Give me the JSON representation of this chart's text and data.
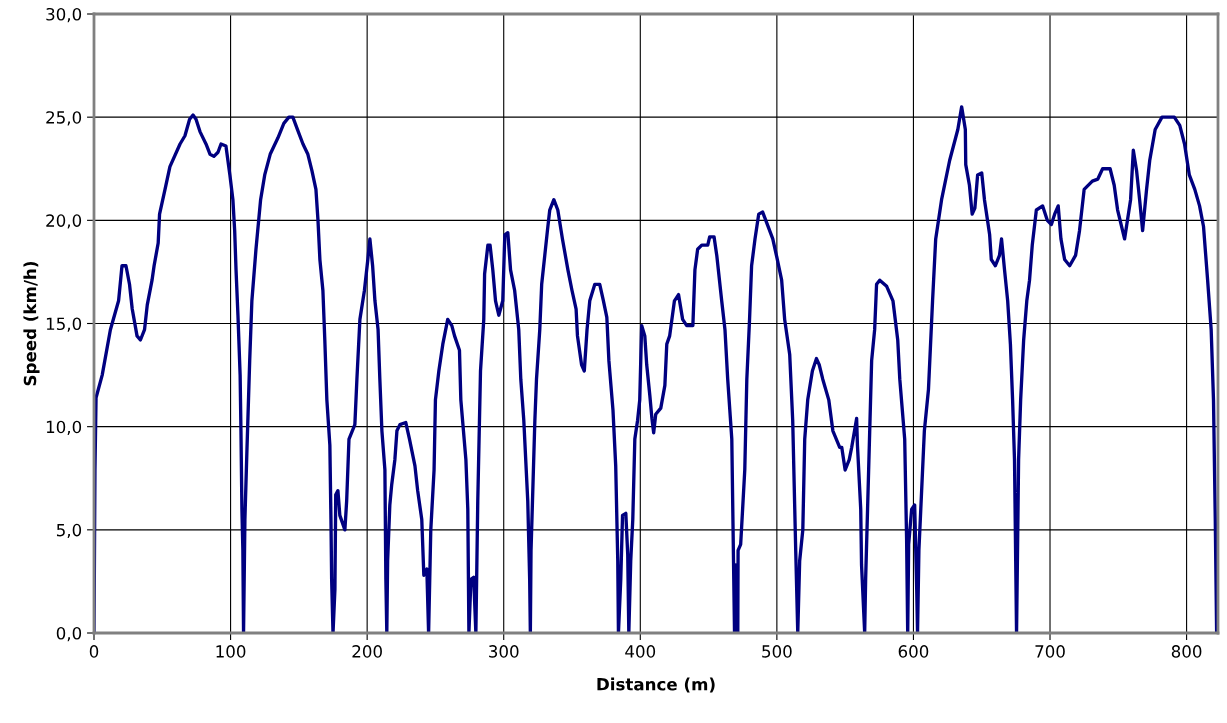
{
  "chart_data": {
    "type": "line",
    "xlabel": "Distance (m)",
    "ylabel": "Speed (km/h)",
    "xlim": [
      0,
      823
    ],
    "xticks": [
      0,
      100,
      200,
      300,
      400,
      500,
      600,
      700,
      800
    ],
    "ylim": [
      0,
      30
    ],
    "yticks": [
      {
        "value": 0,
        "label": "0,0"
      },
      {
        "value": 5,
        "label": "5,0"
      },
      {
        "value": 10,
        "label": "10,0"
      },
      {
        "value": 15,
        "label": "15,0"
      },
      {
        "value": 20,
        "label": "20,0"
      },
      {
        "value": 25,
        "label": "25,0"
      },
      {
        "value": 30,
        "label": "30,0"
      }
    ],
    "grid": true,
    "marker": "none",
    "line_style": "solid",
    "series": [
      {
        "color": "#000080",
        "x": [
          0,
          0.7,
          1.5,
          6,
          12,
          18,
          20.5,
          23.4,
          26,
          28,
          31.5,
          34,
          37,
          39,
          42.5,
          44,
          47,
          48,
          52,
          55.6,
          63,
          66.6,
          70,
          72.5,
          74.7,
          77.6,
          82,
          85,
          87.8,
          90.8,
          93,
          96.6,
          99.5,
          101.7,
          103,
          104,
          105.4,
          107,
          107.6,
          108.3,
          109,
          109.5,
          110.5,
          112,
          114,
          115.6,
          118.6,
          122,
          125,
          129,
          134.7,
          139,
          142.7,
          145.6,
          149,
          153,
          156.6,
          159.6,
          162.5,
          164,
          165.4,
          167.6,
          169,
          170.5,
          172.7,
          173.5,
          174,
          175,
          176.4,
          177,
          178.6,
          180,
          183.7,
          185,
          186.7,
          191,
          192.5,
          194.7,
          198,
          200.5,
          202,
          204,
          205.7,
          208,
          209.3,
          210.8,
          213,
          213.7,
          214.4,
          215,
          216.6,
          218,
          220.3,
          221.8,
          224,
          228.3,
          231,
          235,
          237,
          240,
          241.5,
          243.7,
          245,
          246.6,
          249,
          250,
          252.5,
          255.4,
          259,
          262,
          264,
          267.6,
          268.6,
          272.3,
          273.7,
          274.5,
          276,
          278,
          279.6,
          281,
          283,
          285.4,
          286,
          288.4,
          290,
          292,
          294,
          296.4,
          299.3,
          300.8,
          303,
          305,
          308,
          311,
          312.5,
          314.7,
          317.6,
          319,
          319.5,
          320,
          322.8,
          324,
          326.4,
          327.8,
          332,
          333.7,
          336.7,
          339.6,
          343,
          347,
          350,
          353,
          354,
          357,
          359,
          361,
          363,
          366.7,
          370.3,
          373,
          375.5,
          377,
          380,
          382,
          383.5,
          384,
          385.7,
          387,
          389.4,
          390.8,
          391.6,
          393,
          394.5,
          396,
          398,
          399.6,
          401,
          403.3,
          404.7,
          407,
          408.5,
          409.8,
          411.3,
          415,
          418,
          419.4,
          421.5,
          425,
          428,
          431,
          434,
          438.5,
          440,
          442,
          445,
          449.4,
          450.8,
          454,
          456,
          459.6,
          462,
          464,
          467,
          469,
          470,
          471.4,
          471.6,
          473.5,
          476.5,
          478,
          480,
          481.5,
          484,
          486.7,
          489.6,
          493,
          497,
          500,
          503.5,
          505.7,
          509.4,
          511.6,
          513.8,
          515.3,
          516.7,
          519,
          520.4,
          522.6,
          526,
          529,
          531,
          533.6,
          538,
          541,
          546,
          547.5,
          550,
          553,
          554.8,
          558.4,
          559,
          561.4,
          562,
          564.3,
          565,
          567.2,
          569.4,
          571.6,
          573,
          575.3,
          580.4,
          585,
          588.5,
          590,
          593.6,
          595,
          595.8,
          596.5,
          598.7,
          600.9,
          602.4,
          603,
          604,
          606,
          608,
          611,
          614,
          616.3,
          620.6,
          626.5,
          632.5,
          635.3,
          638,
          638.3,
          641,
          643,
          645,
          647,
          650,
          652,
          655.8,
          657,
          660,
          663,
          664.5,
          666.7,
          669,
          671,
          672.6,
          674,
          675.5,
          677,
          678.5,
          680.7,
          683,
          685,
          687,
          690,
          694.6,
          698,
          701,
          703.4,
          706,
          708,
          710.7,
          714.4,
          718.7,
          721.6,
          725,
          731,
          735,
          738.5,
          744,
          747,
          749.5,
          754.6,
          759,
          761,
          763.4,
          765.6,
          767.8,
          770.7,
          773,
          777,
          782,
          791,
          795,
          798.5,
          802,
          806,
          809.5,
          812.4,
          815.4,
          818,
          819.7,
          821,
          822
        ],
        "values": [
          0,
          7.9,
          11.4,
          12.5,
          14.7,
          16.1,
          17.8,
          17.8,
          16.9,
          15.7,
          14.4,
          14.2,
          14.7,
          15.9,
          17.1,
          17.8,
          18.9,
          20.3,
          21.5,
          22.6,
          23.7,
          24.1,
          24.9,
          25.1,
          24.9,
          24.3,
          23.7,
          23.2,
          23.1,
          23.3,
          23.7,
          23.6,
          22.2,
          21.0,
          19.5,
          17.6,
          15.4,
          12.5,
          9.8,
          6.0,
          4.0,
          0,
          5.5,
          8.9,
          13.2,
          16.1,
          18.6,
          21.0,
          22.2,
          23.2,
          24.0,
          24.7,
          25.0,
          25.0,
          24.4,
          23.7,
          23.2,
          22.4,
          21.5,
          20.0,
          18.1,
          16.6,
          14.2,
          11.3,
          9.1,
          5.5,
          2.6,
          0,
          2.1,
          6.7,
          6.9,
          5.7,
          5.0,
          6.4,
          9.4,
          10.1,
          12.3,
          15.2,
          16.6,
          18.1,
          19.1,
          17.8,
          16.1,
          14.7,
          12.3,
          9.8,
          7.9,
          2.6,
          0,
          3.5,
          6.2,
          7.2,
          8.4,
          9.8,
          10.1,
          10.2,
          9.4,
          8.1,
          6.9,
          5.5,
          2.8,
          3.1,
          0,
          5.0,
          7.9,
          11.3,
          12.7,
          14.0,
          15.2,
          14.9,
          14.4,
          13.7,
          11.3,
          8.4,
          6.0,
          0,
          2.6,
          2.7,
          0,
          6.4,
          12.7,
          15.2,
          17.4,
          18.8,
          18.8,
          17.6,
          16.1,
          15.4,
          16.1,
          19.3,
          19.4,
          17.6,
          16.6,
          14.7,
          12.3,
          10.3,
          6.4,
          2.6,
          0,
          4.0,
          10.3,
          12.3,
          14.7,
          16.9,
          19.5,
          20.5,
          21.0,
          20.5,
          19.1,
          17.6,
          16.6,
          15.7,
          14.4,
          13.0,
          12.7,
          14.7,
          16.1,
          16.9,
          16.9,
          16.1,
          15.3,
          13.2,
          10.8,
          8.1,
          3.5,
          0,
          2.6,
          5.7,
          5.8,
          3.8,
          0,
          3.5,
          5.5,
          9.4,
          10.3,
          11.3,
          14.9,
          14.4,
          13.0,
          11.5,
          10.4,
          9.7,
          10.6,
          10.9,
          12.0,
          14.0,
          14.4,
          16.1,
          16.4,
          15.2,
          14.9,
          14.9,
          17.6,
          18.6,
          18.8,
          18.8,
          19.2,
          19.2,
          18.3,
          16.1,
          14.7,
          12.3,
          9.4,
          0,
          3.3,
          0,
          4.0,
          4.3,
          7.9,
          12.3,
          15.2,
          17.8,
          19.1,
          20.3,
          20.4,
          19.8,
          19.1,
          18.2,
          17.1,
          15.2,
          13.5,
          10.3,
          4.0,
          0,
          3.5,
          5.0,
          9.4,
          11.3,
          12.7,
          13.3,
          13.0,
          12.3,
          11.3,
          9.8,
          9.0,
          9.0,
          7.9,
          8.4,
          9.0,
          10.4,
          9.1,
          6.0,
          3.3,
          0,
          2.6,
          7.9,
          13.2,
          14.7,
          16.9,
          17.1,
          16.8,
          16.1,
          14.2,
          12.3,
          9.4,
          4.5,
          0,
          4.3,
          6.0,
          6.2,
          2.1,
          0,
          4.0,
          6.9,
          9.8,
          11.8,
          16.1,
          19.1,
          21.0,
          22.9,
          24.4,
          25.5,
          24.4,
          22.7,
          21.7,
          20.3,
          20.6,
          22.2,
          22.3,
          21.0,
          19.3,
          18.1,
          17.8,
          18.3,
          19.1,
          17.6,
          16.1,
          14.0,
          11.3,
          8.4,
          0,
          8.4,
          11.3,
          14.2,
          16.1,
          17.1,
          18.8,
          20.5,
          20.7,
          20.0,
          19.8,
          20.3,
          20.7,
          19.1,
          18.1,
          17.8,
          18.3,
          19.5,
          21.5,
          21.9,
          22.0,
          22.5,
          22.5,
          21.7,
          20.5,
          19.1,
          21.0,
          23.4,
          22.4,
          21.0,
          19.5,
          21.5,
          22.9,
          24.4,
          25.0,
          25.0,
          24.6,
          23.7,
          22.2,
          21.5,
          20.7,
          19.7,
          17.1,
          14.7,
          11.3,
          5.5,
          0
        ]
      }
    ]
  }
}
